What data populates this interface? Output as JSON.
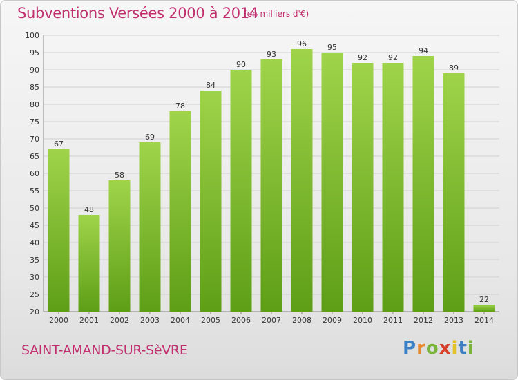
{
  "header": {
    "title": "Subventions Versées 2000 à 2014",
    "subtitle": "(en milliers d'€)"
  },
  "footer": {
    "commune": "SAINT-AMAND-SUR-SèVRE",
    "logo_text": "Proxiti"
  },
  "colors": {
    "title": "#c0306e",
    "bar_top": "#9fd44a",
    "bar_bottom": "#5e9e17",
    "grid": "#d0d0d0"
  },
  "chart_data": {
    "type": "bar",
    "title": "Subventions Versées 2000 à 2014",
    "subtitle": "(en milliers d'€)",
    "categories": [
      "2000",
      "2001",
      "2002",
      "2003",
      "2004",
      "2005",
      "2006",
      "2007",
      "2008",
      "2009",
      "2010",
      "2011",
      "2012",
      "2013",
      "2014"
    ],
    "values": [
      67,
      48,
      58,
      69,
      78,
      84,
      90,
      93,
      96,
      95,
      92,
      92,
      94,
      89,
      22
    ],
    "ylim": [
      20,
      100
    ],
    "yticks": [
      20,
      25,
      30,
      35,
      40,
      45,
      50,
      55,
      60,
      65,
      70,
      75,
      80,
      85,
      90,
      95,
      100
    ],
    "grid": true,
    "legend": "none"
  }
}
